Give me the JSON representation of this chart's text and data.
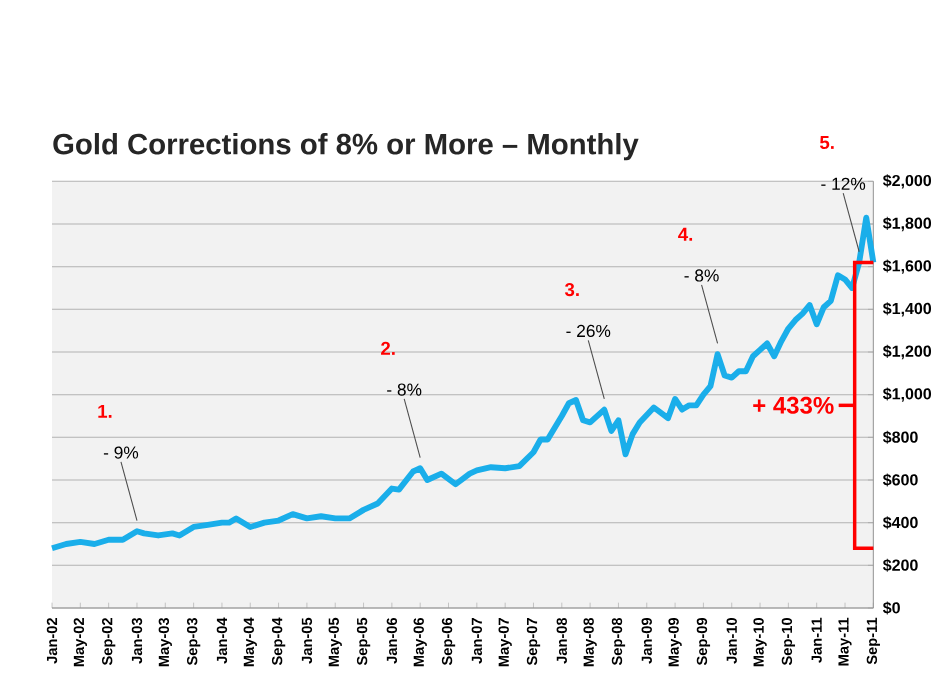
{
  "chart_data": {
    "type": "line",
    "title": "Gold Corrections of 8% or More – Monthly",
    "x": [
      "2002-01",
      "2002-03",
      "2002-05",
      "2002-07",
      "2002-09",
      "2002-11",
      "2003-01",
      "2003-02",
      "2003-04",
      "2003-06",
      "2003-07",
      "2003-09",
      "2003-11",
      "2004-01",
      "2004-02",
      "2004-03",
      "2004-05",
      "2004-07",
      "2004-09",
      "2004-11",
      "2005-01",
      "2005-03",
      "2005-05",
      "2005-07",
      "2005-09",
      "2005-11",
      "2006-01",
      "2006-02",
      "2006-04",
      "2006-05",
      "2006-06",
      "2006-08",
      "2006-10",
      "2006-12",
      "2007-01",
      "2007-03",
      "2007-05",
      "2007-07",
      "2007-09",
      "2007-10",
      "2007-11",
      "2008-01",
      "2008-02",
      "2008-03",
      "2008-04",
      "2008-05",
      "2008-06",
      "2008-07",
      "2008-08",
      "2008-09",
      "2008-10",
      "2008-11",
      "2008-12",
      "2009-02",
      "2009-04",
      "2009-05",
      "2009-06",
      "2009-07",
      "2009-08",
      "2009-09",
      "2009-10",
      "2009-11",
      "2009-12",
      "2010-01",
      "2010-02",
      "2010-03",
      "2010-04",
      "2010-05",
      "2010-06",
      "2010-07",
      "2010-08",
      "2010-09",
      "2010-10",
      "2010-11",
      "2010-12",
      "2011-01",
      "2011-02",
      "2011-03",
      "2011-04",
      "2011-05",
      "2011-06",
      "2011-07",
      "2011-08",
      "2011-09"
    ],
    "series": [
      {
        "color": "#1aaeea",
        "values": [
          280,
          300,
          310,
          300,
          320,
          320,
          360,
          350,
          340,
          350,
          340,
          380,
          390,
          400,
          400,
          420,
          380,
          400,
          410,
          440,
          420,
          430,
          420,
          420,
          460,
          490,
          560,
          555,
          640,
          655,
          600,
          630,
          580,
          630,
          645,
          660,
          655,
          665,
          730,
          790,
          790,
          900,
          960,
          975,
          880,
          870,
          900,
          930,
          830,
          880,
          720,
          815,
          870,
          940,
          890,
          980,
          930,
          950,
          950,
          1000,
          1040,
          1190,
          1090,
          1080,
          1110,
          1110,
          1180,
          1210,
          1240,
          1180,
          1250,
          1310,
          1350,
          1380,
          1420,
          1330,
          1410,
          1440,
          1560,
          1540,
          1500,
          1620,
          1830,
          1620
        ]
      }
    ],
    "xlim": [
      "2002-01",
      "2011-09"
    ],
    "xticks": [
      {
        "value": "2002-01",
        "label": "Jan-02"
      },
      {
        "value": "2002-05",
        "label": "May-02"
      },
      {
        "value": "2002-09",
        "label": "Sep-02"
      },
      {
        "value": "2003-01",
        "label": "Jan-03"
      },
      {
        "value": "2003-05",
        "label": "May-03"
      },
      {
        "value": "2003-09",
        "label": "Sep-03"
      },
      {
        "value": "2004-01",
        "label": "Jan-04"
      },
      {
        "value": "2004-05",
        "label": "May-04"
      },
      {
        "value": "2004-09",
        "label": "Sep-04"
      },
      {
        "value": "2005-01",
        "label": "Jan-05"
      },
      {
        "value": "2005-05",
        "label": "May-05"
      },
      {
        "value": "2005-09",
        "label": "Sep-05"
      },
      {
        "value": "2006-01",
        "label": "Jan-06"
      },
      {
        "value": "2006-05",
        "label": "May-06"
      },
      {
        "value": "2006-09",
        "label": "Sep-06"
      },
      {
        "value": "2007-01",
        "label": "Jan-07"
      },
      {
        "value": "2007-05",
        "label": "May-07"
      },
      {
        "value": "2007-09",
        "label": "Sep-07"
      },
      {
        "value": "2008-01",
        "label": "Jan-08"
      },
      {
        "value": "2008-05",
        "label": "May-08"
      },
      {
        "value": "2008-09",
        "label": "Sep-08"
      },
      {
        "value": "2009-01",
        "label": "Jan-09"
      },
      {
        "value": "2009-05",
        "label": "May-09"
      },
      {
        "value": "2009-09",
        "label": "Sep-09"
      },
      {
        "value": "2010-01",
        "label": "Jan-10"
      },
      {
        "value": "2010-05",
        "label": "May-10"
      },
      {
        "value": "2010-09",
        "label": "Sep-10"
      },
      {
        "value": "2011-01",
        "label": "Jan-11"
      },
      {
        "value": "2011-05",
        "label": "May-11"
      },
      {
        "value": "2011-09",
        "label": "Sep-11"
      }
    ],
    "ylim": [
      0,
      2000
    ],
    "yticks": [
      {
        "value": 0,
        "label": "$0"
      },
      {
        "value": 200,
        "label": "$200"
      },
      {
        "value": 400,
        "label": "$400"
      },
      {
        "value": 600,
        "label": "$600"
      },
      {
        "value": 800,
        "label": "$800"
      },
      {
        "value": 1000,
        "label": "$1,000"
      },
      {
        "value": 1200,
        "label": "$1,200"
      },
      {
        "value": 1400,
        "label": "$1,400"
      },
      {
        "value": 1600,
        "label": "$1,600"
      },
      {
        "value": 1800,
        "label": "$1,800"
      },
      {
        "value": 2000,
        "label": "$2,000"
      }
    ],
    "grid": "y",
    "annotations": [
      {
        "text": "- 9%",
        "x": "2003-01",
        "y": 360
      },
      {
        "text": "- 8%",
        "x": "2006-05",
        "y": 655
      },
      {
        "text": "- 26%",
        "x": "2008-07",
        "y": 930
      },
      {
        "text": "- 8%",
        "x": "2009-11",
        "y": 1190
      },
      {
        "text": "- 12%",
        "x": "2011-07",
        "y": 1620
      },
      "1.",
      "2.",
      "3.",
      "4.",
      "5.",
      "+ 433%"
    ]
  }
}
